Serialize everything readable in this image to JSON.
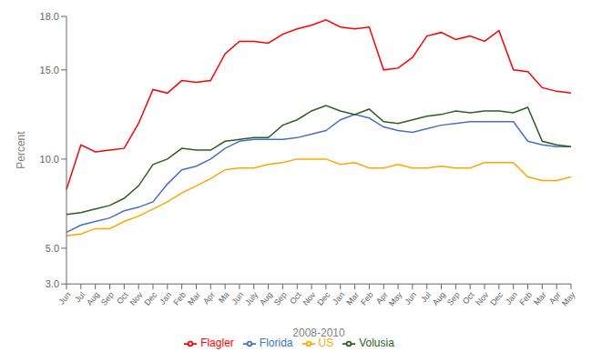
{
  "chart_data": {
    "type": "line",
    "xlabel": "2008-2010",
    "ylabel": "Percent",
    "categories": [
      "Jun",
      "Jul",
      "Aug",
      "Sep",
      "Oct",
      "Nov",
      "Dec",
      "Jan",
      "Feb",
      "Mar",
      "Apr",
      "Ma",
      "Jun",
      "July",
      "Aug",
      "Sep",
      "Oct",
      "Nov",
      "Dec",
      "Jan",
      "Mar",
      "Feb",
      "Apr",
      "May",
      "Jun",
      "Jul",
      "Aug",
      "Sep",
      "Oct",
      "Nov",
      "Dec",
      "Jan",
      "Feb",
      "Mar",
      "Apr",
      "May"
    ],
    "series": [
      {
        "name": "US",
        "color": "#FFA500",
        "values": [
          5.7,
          5.8,
          6.1,
          6.1,
          6.5,
          6.8,
          7.2,
          7.6,
          8.1,
          8.5,
          8.9,
          9.4,
          9.5,
          9.5,
          9.7,
          9.8,
          10.0,
          10.0,
          10.0,
          9.7,
          9.8,
          9.5,
          9.5,
          9.7,
          9.5,
          9.5,
          9.6,
          9.5,
          9.5,
          9.8,
          9.8,
          9.8,
          9.0,
          8.8,
          8.8,
          9.0
        ]
      },
      {
        "name": "Florida",
        "color": "#4472C4",
        "values": [
          5.9,
          6.3,
          6.5,
          6.7,
          7.1,
          7.3,
          7.6,
          8.6,
          9.4,
          9.6,
          10.0,
          10.6,
          11.0,
          11.1,
          11.1,
          11.1,
          11.2,
          11.4,
          11.6,
          12.2,
          12.5,
          12.3,
          11.8,
          11.6,
          11.5,
          11.7,
          11.9,
          12.0,
          12.1,
          12.1,
          12.1,
          12.1,
          11.0,
          10.8,
          10.7,
          10.7
        ]
      },
      {
        "name": "Flagler",
        "color": "#FF0000",
        "values": [
          8.3,
          10.8,
          10.4,
          10.5,
          10.6,
          12.0,
          13.9,
          13.7,
          14.4,
          14.3,
          14.4,
          15.9,
          16.6,
          16.6,
          16.5,
          17.0,
          17.3,
          17.5,
          17.8,
          17.4,
          17.3,
          17.4,
          15.0,
          15.1,
          15.7,
          16.9,
          17.1,
          16.7,
          16.9,
          16.6,
          17.2,
          15.0,
          14.9,
          14.0,
          13.8,
          13.7
        ]
      },
      {
        "name": "Volusia",
        "color": "#2E5E1E",
        "values": [
          6.9,
          7.0,
          7.2,
          7.4,
          7.8,
          8.5,
          9.7,
          10.0,
          10.6,
          10.5,
          10.5,
          11.0,
          11.1,
          11.2,
          11.2,
          11.9,
          12.2,
          12.7,
          13.0,
          12.7,
          12.5,
          12.8,
          12.1,
          12.0,
          12.2,
          12.4,
          12.5,
          12.7,
          12.6,
          12.7,
          12.7,
          12.6,
          12.9,
          11.0,
          10.8,
          10.7
        ]
      }
    ],
    "ylim": [
      3.0,
      18.0
    ],
    "yticks": [
      {
        "value": 3.0,
        "label": "3.0"
      },
      {
        "value": 5.0,
        "label": "5.0"
      },
      {
        "value": 10.0,
        "label": "10.0"
      },
      {
        "value": 15.0,
        "label": "15.0"
      },
      {
        "value": 18.0,
        "label": "18.0"
      }
    ],
    "grid": false,
    "legend": "bottom"
  }
}
